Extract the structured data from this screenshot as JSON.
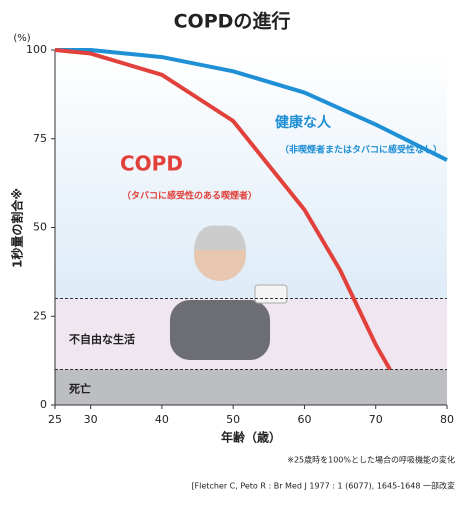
{
  "chart_data": {
    "type": "line",
    "title": "COPDの進行",
    "y_label": "1秒量の割合※",
    "y_unit": "(%)",
    "x_label": "年齢（歳）",
    "note": "※25歳時を100%とした場合の呼吸機能の変化",
    "source": "[Fletcher C, Peto R : Br Med J 1977 : 1 (6077), 1645-1648 一部改変",
    "xlim": [
      25,
      80
    ],
    "xticks": [
      25,
      30,
      40,
      50,
      60,
      70,
      80
    ],
    "ylim": [
      0,
      100
    ],
    "yticks": [
      0,
      25,
      50,
      75,
      100
    ],
    "bands": [
      {
        "label": "不自由な生活",
        "range": [
          10,
          30
        ],
        "color": "#f2e6ef"
      },
      {
        "label": "死亡",
        "range": [
          0,
          10
        ],
        "color": "#b9b9bd"
      }
    ],
    "series": [
      {
        "name": "健康な人",
        "description": "（非喫煙者またはタバコに感受性なし）",
        "color": "#1f8fd6",
        "x": [
          25,
          30,
          40,
          50,
          60,
          70,
          80
        ],
        "values": [
          100,
          100,
          98,
          94,
          88,
          79,
          69
        ]
      },
      {
        "name": "COPD",
        "description": "（タバコに感受性のある喫煙者）",
        "color": "#e2403a",
        "x": [
          25,
          30,
          40,
          50,
          60,
          65,
          70,
          72
        ],
        "values": [
          100,
          99,
          93,
          80,
          55,
          38,
          17,
          10
        ]
      }
    ]
  }
}
